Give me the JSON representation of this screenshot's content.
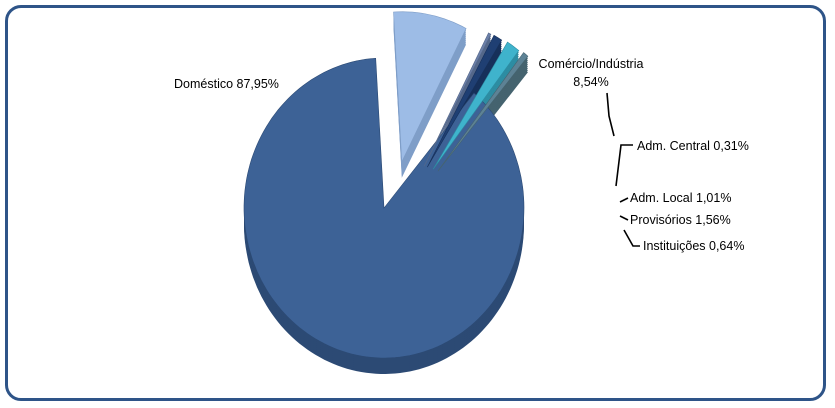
{
  "chart_data": {
    "type": "pie",
    "categories": [
      "Doméstico",
      "Comércio/Indústria",
      "Adm. Central",
      "Adm. Local",
      "Provisórios",
      "Instituições"
    ],
    "values": [
      87.95,
      8.54,
      0.31,
      1.01,
      1.56,
      0.64
    ],
    "value_labels": [
      "87,95%",
      "8,54%",
      "0,31%",
      "1,01%",
      "1,56%",
      "0,64%"
    ],
    "labels": [
      "Doméstico 87,95%",
      "Comércio/Indústria",
      "Adm. Central 0,31%",
      "Adm. Local 1,01%",
      "Provisórios 1,56%",
      "Instituições 0,64%"
    ],
    "commerce_pct": "8,54%",
    "colors": [
      "#3d6296",
      "#9dbce6",
      "#6b7fa8",
      "#1f3f73",
      "#3fb3cc",
      "#5d8295"
    ],
    "side_colors": [
      "#2c4a74",
      "#7f9ec8",
      "#55688a",
      "#17305a",
      "#2d8da3",
      "#45636f"
    ],
    "style": "3d-exploded",
    "legend": "none"
  }
}
